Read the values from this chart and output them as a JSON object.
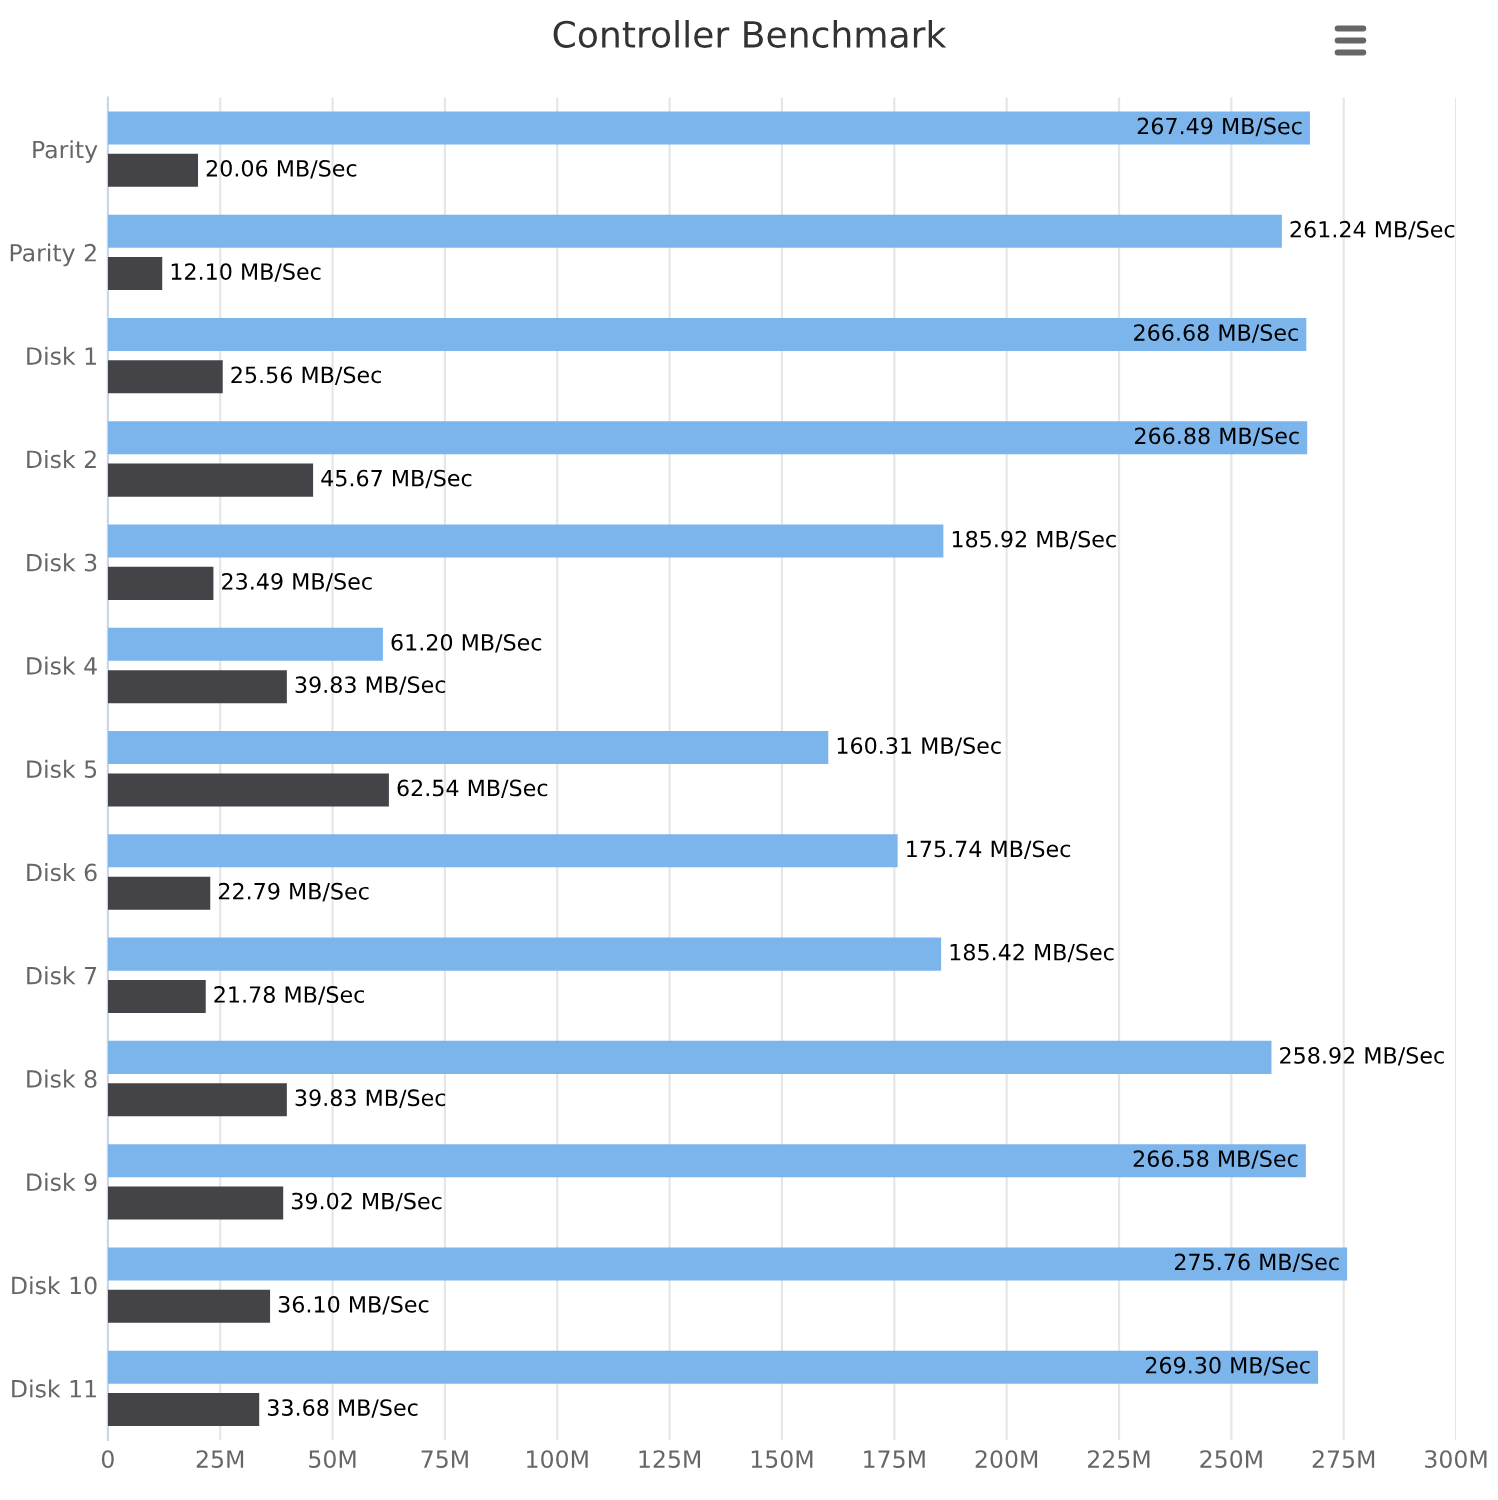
{
  "chart_data": {
    "type": "bar",
    "orientation": "horizontal",
    "title": "Controller Benchmark",
    "categories": [
      "Parity",
      "Parity 2",
      "Disk 1",
      "Disk 2",
      "Disk 3",
      "Disk 4",
      "Disk 5",
      "Disk 6",
      "Disk 7",
      "Disk 8",
      "Disk 9",
      "Disk 10",
      "Disk 11"
    ],
    "series": [
      {
        "color": "#7cb5ec",
        "values": [
          267.49,
          261.24,
          266.68,
          266.88,
          185.92,
          61.2,
          160.31,
          175.74,
          185.42,
          258.92,
          266.58,
          275.76,
          269.3
        ],
        "value_labels": [
          "267.49 MB/Sec",
          "261.24 MB/Sec",
          "266.68 MB/Sec",
          "266.88 MB/Sec",
          "185.92 MB/Sec",
          "61.20 MB/Sec",
          "160.31 MB/Sec",
          "175.74 MB/Sec",
          "185.42 MB/Sec",
          "258.92 MB/Sec",
          "266.58 MB/Sec",
          "275.76 MB/Sec",
          "269.30 MB/Sec"
        ]
      },
      {
        "color": "#434348",
        "values": [
          20.06,
          12.1,
          25.56,
          45.67,
          23.49,
          39.83,
          62.54,
          22.79,
          21.78,
          39.83,
          39.02,
          36.1,
          33.68
        ],
        "value_labels": [
          "20.06 MB/Sec",
          "12.10 MB/Sec",
          "25.56 MB/Sec",
          "45.67 MB/Sec",
          "23.49 MB/Sec",
          "39.83 MB/Sec",
          "62.54 MB/Sec",
          "22.79 MB/Sec",
          "21.78 MB/Sec",
          "39.83 MB/Sec",
          "39.02 MB/Sec",
          "36.10 MB/Sec",
          "33.68 MB/Sec"
        ]
      }
    ],
    "xlim": [
      0,
      300
    ],
    "xticks": [
      0,
      {
        "value": 25,
        "label": "25M"
      },
      {
        "value": 50,
        "label": "50M"
      },
      {
        "value": 75,
        "label": "75M"
      },
      {
        "value": 100,
        "label": "100M"
      },
      {
        "value": 125,
        "label": "125M"
      },
      {
        "value": 150,
        "label": "150M"
      },
      {
        "value": 175,
        "label": "175M"
      },
      {
        "value": 200,
        "label": "200M"
      },
      {
        "value": 225,
        "label": "225M"
      },
      {
        "value": 250,
        "label": "250M"
      },
      {
        "value": 275,
        "label": "275M"
      },
      {
        "value": 300,
        "label": "300M"
      }
    ],
    "grid": "x",
    "legend": false
  }
}
